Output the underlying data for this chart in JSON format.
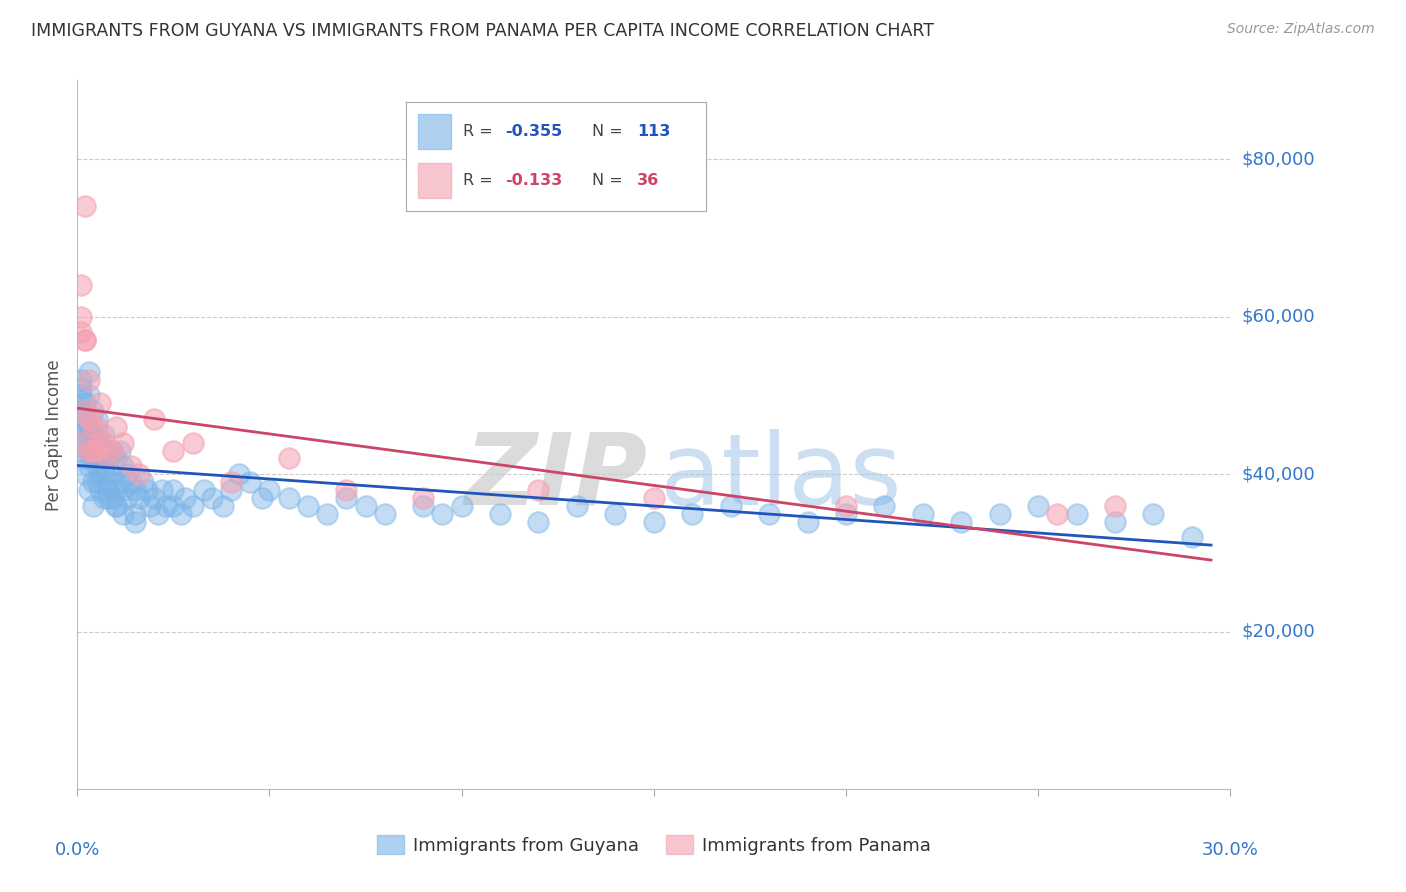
{
  "title": "IMMIGRANTS FROM GUYANA VS IMMIGRANTS FROM PANAMA PER CAPITA INCOME CORRELATION CHART",
  "source": "Source: ZipAtlas.com",
  "ylabel": "Per Capita Income",
  "yticks": [
    0,
    20000,
    40000,
    60000,
    80000
  ],
  "ytick_labels": [
    "",
    "$20,000",
    "$40,000",
    "$60,000",
    "$80,000"
  ],
  "xlim": [
    0.0,
    0.3
  ],
  "ylim": [
    0,
    90000
  ],
  "legend_labels": [
    "Immigrants from Guyana",
    "Immigrants from Panama"
  ],
  "guyana_color": "#7ab3e8",
  "panama_color": "#f4a0b0",
  "line_guyana_color": "#2255bb",
  "line_panama_color": "#cc4466",
  "grid_color": "#cccccc",
  "title_color": "#333333",
  "axis_label_color": "#3377cc",
  "watermark_zip_color": "#d0d0d0",
  "watermark_atlas_color": "#b0c8e8",
  "guyana_x": [
    0.001,
    0.001,
    0.001,
    0.001,
    0.001,
    0.002,
    0.002,
    0.002,
    0.002,
    0.002,
    0.002,
    0.003,
    0.003,
    0.003,
    0.003,
    0.003,
    0.003,
    0.004,
    0.004,
    0.004,
    0.004,
    0.004,
    0.005,
    0.005,
    0.005,
    0.005,
    0.005,
    0.006,
    0.006,
    0.006,
    0.006,
    0.007,
    0.007,
    0.007,
    0.007,
    0.008,
    0.008,
    0.008,
    0.009,
    0.009,
    0.01,
    0.01,
    0.01,
    0.011,
    0.011,
    0.012,
    0.012,
    0.013,
    0.013,
    0.014,
    0.015,
    0.015,
    0.016,
    0.017,
    0.018,
    0.019,
    0.02,
    0.021,
    0.022,
    0.023,
    0.025,
    0.025,
    0.027,
    0.028,
    0.03,
    0.033,
    0.035,
    0.038,
    0.04,
    0.042,
    0.045,
    0.048,
    0.05,
    0.055,
    0.06,
    0.065,
    0.07,
    0.075,
    0.08,
    0.09,
    0.095,
    0.1,
    0.11,
    0.12,
    0.13,
    0.14,
    0.15,
    0.16,
    0.17,
    0.18,
    0.19,
    0.2,
    0.21,
    0.22,
    0.23,
    0.24,
    0.25,
    0.26,
    0.27,
    0.28,
    0.001,
    0.002,
    0.003,
    0.004,
    0.005,
    0.006,
    0.007,
    0.008,
    0.009,
    0.01,
    0.012,
    0.015,
    0.29
  ],
  "guyana_y": [
    48000,
    45000,
    43000,
    50000,
    52000,
    46000,
    49000,
    44000,
    42000,
    47000,
    40000,
    43000,
    41000,
    50000,
    38000,
    45000,
    53000,
    44000,
    42000,
    48000,
    39000,
    36000,
    45000,
    41000,
    43000,
    47000,
    39000,
    44000,
    40000,
    42000,
    38000,
    43000,
    41000,
    37000,
    45000,
    42000,
    39000,
    37000,
    43000,
    40000,
    42000,
    38000,
    36000,
    43000,
    39000,
    41000,
    38000,
    40000,
    37000,
    39000,
    38000,
    35000,
    37000,
    39000,
    38000,
    36000,
    37000,
    35000,
    38000,
    36000,
    36000,
    38000,
    35000,
    37000,
    36000,
    38000,
    37000,
    36000,
    38000,
    40000,
    39000,
    37000,
    38000,
    37000,
    36000,
    35000,
    37000,
    36000,
    35000,
    36000,
    35000,
    36000,
    35000,
    34000,
    36000,
    35000,
    34000,
    35000,
    36000,
    35000,
    34000,
    35000,
    36000,
    35000,
    34000,
    35000,
    36000,
    35000,
    34000,
    35000,
    51000,
    48000,
    46000,
    45000,
    43000,
    42000,
    40000,
    38000,
    37000,
    36000,
    35000,
    34000,
    32000
  ],
  "panama_x": [
    0.001,
    0.001,
    0.001,
    0.002,
    0.002,
    0.002,
    0.003,
    0.003,
    0.003,
    0.004,
    0.004,
    0.005,
    0.005,
    0.006,
    0.006,
    0.007,
    0.008,
    0.009,
    0.01,
    0.012,
    0.014,
    0.016,
    0.02,
    0.025,
    0.03,
    0.04,
    0.055,
    0.07,
    0.09,
    0.12,
    0.15,
    0.2,
    0.255,
    0.27,
    0.001,
    0.002
  ],
  "panama_y": [
    64000,
    44000,
    58000,
    74000,
    57000,
    48000,
    52000,
    43000,
    47000,
    46000,
    43000,
    46000,
    43000,
    49000,
    44000,
    44000,
    42000,
    43000,
    46000,
    44000,
    41000,
    40000,
    47000,
    43000,
    44000,
    39000,
    42000,
    38000,
    37000,
    38000,
    37000,
    36000,
    35000,
    36000,
    60000,
    57000
  ]
}
